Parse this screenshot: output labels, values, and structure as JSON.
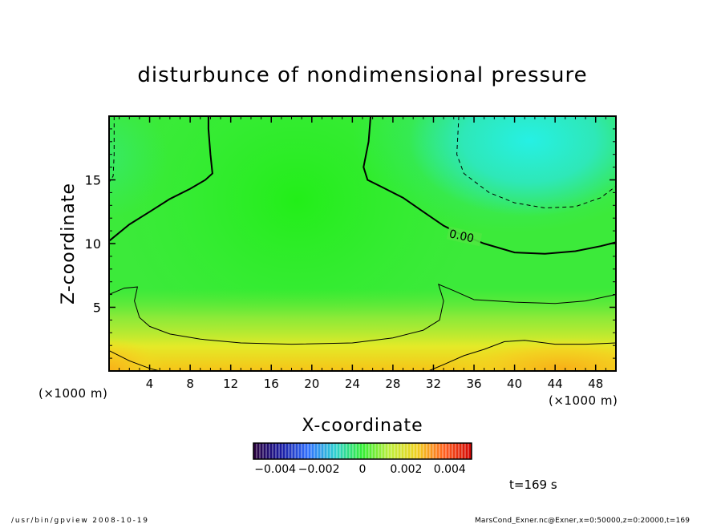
{
  "chart_data": {
    "type": "heatmap",
    "title": "disturbunce of nondimensional pressure",
    "xlabel": "X-coordinate",
    "ylabel": "Z-coordinate",
    "x_unit_left": "(×1000 m)",
    "x_unit_right": "(×1000 m)",
    "xlim": [
      0,
      50
    ],
    "ylim": [
      0,
      20
    ],
    "x_ticks": [
      4,
      8,
      12,
      16,
      20,
      24,
      28,
      32,
      36,
      40,
      44,
      48
    ],
    "y_ticks": [
      5,
      10,
      15
    ],
    "contours": [
      {
        "level": 0.0,
        "label": "0.00",
        "style": "solid-thick",
        "points": [
          [
            0,
            10.2
          ],
          [
            2,
            11.5
          ],
          [
            4,
            12.5
          ],
          [
            6,
            13.5
          ],
          [
            8,
            14.3
          ],
          [
            9.5,
            15
          ],
          [
            10.2,
            15.5
          ],
          [
            10,
            17
          ],
          [
            9.8,
            19
          ],
          [
            9.8,
            20
          ]
        ],
        "points2": [
          [
            25.8,
            20
          ],
          [
            25.6,
            18
          ],
          [
            25.1,
            16
          ],
          [
            25.5,
            15
          ],
          [
            27,
            14.4
          ],
          [
            29,
            13.6
          ],
          [
            31,
            12.5
          ],
          [
            33,
            11.4
          ],
          [
            34.5,
            10.8
          ],
          [
            37,
            10
          ],
          [
            40,
            9.3
          ],
          [
            43,
            9.2
          ],
          [
            46,
            9.4
          ],
          [
            48.5,
            9.8
          ],
          [
            50,
            10.1
          ]
        ]
      },
      {
        "level": -0.0005,
        "style": "dashed",
        "points": [
          [
            0.5,
            20
          ],
          [
            0.5,
            17
          ],
          [
            0.4,
            15.3
          ],
          [
            0,
            14.8
          ]
        ],
        "points2": [
          [
            34.5,
            20
          ],
          [
            34.3,
            17
          ],
          [
            35,
            15.5
          ],
          [
            37.5,
            14
          ],
          [
            40,
            13.2
          ],
          [
            43,
            12.8
          ],
          [
            46,
            12.9
          ],
          [
            48.5,
            13.6
          ],
          [
            50,
            14.5
          ]
        ]
      },
      {
        "level": 0.0005,
        "style": "solid-thin",
        "points": [
          [
            0,
            6
          ],
          [
            1.5,
            6.5
          ],
          [
            2.8,
            6.6
          ],
          [
            2.5,
            5.5
          ],
          [
            3,
            4.2
          ],
          [
            4,
            3.5
          ],
          [
            6,
            2.9
          ],
          [
            9,
            2.5
          ],
          [
            13,
            2.2
          ],
          [
            18,
            2.1
          ],
          [
            24,
            2.2
          ],
          [
            28,
            2.6
          ],
          [
            31,
            3.2
          ],
          [
            32.6,
            4
          ],
          [
            33,
            5.5
          ],
          [
            32.5,
            6.8
          ],
          [
            34,
            6.3
          ],
          [
            36,
            5.6
          ],
          [
            40,
            5.4
          ],
          [
            44,
            5.3
          ],
          [
            47,
            5.5
          ],
          [
            50,
            6
          ]
        ]
      },
      {
        "level": 0.001,
        "style": "solid-thin",
        "points": [
          [
            0,
            1.6
          ],
          [
            2,
            0.8
          ],
          [
            4,
            0.2
          ],
          [
            5,
            0
          ]
        ],
        "points2": [
          [
            31.5,
            0
          ],
          [
            33,
            0.5
          ],
          [
            35,
            1.2
          ],
          [
            37,
            1.7
          ],
          [
            39,
            2.3
          ],
          [
            41,
            2.4
          ],
          [
            44,
            2.1
          ],
          [
            47,
            2.1
          ],
          [
            50,
            2.2
          ]
        ]
      }
    ],
    "field_regions": [
      {
        "name": "negative-upper-right",
        "x": 42,
        "y": 17.5,
        "value": -0.0008
      },
      {
        "name": "center-bulk",
        "x": 18,
        "y": 10,
        "value": 0.0001
      },
      {
        "name": "positive-bottom",
        "x": 44,
        "y": 0.8,
        "value": 0.0013
      },
      {
        "name": "positive-bottom-left",
        "x": 1,
        "y": 0.5,
        "value": 0.0012
      }
    ],
    "colorbar": {
      "min": -0.005,
      "max": 0.005,
      "tick_labels": [
        "−0.004",
        "−0.002",
        "0",
        "0.002",
        "0.004"
      ],
      "tick_values": [
        -0.004,
        -0.002,
        0,
        0.002,
        0.004
      ],
      "stops": [
        "#2a003a",
        "#1a1aa0",
        "#3070ff",
        "#2ed0d0",
        "#33ee33",
        "#bfee3a",
        "#f0d020",
        "#ff6020",
        "#d00000"
      ]
    },
    "time_label": "t=169  s",
    "footer_left": "/usr/bin/gpview  2008-10-19",
    "footer_right": "MarsCond_Exner.nc@Exner,x=0:50000,z=0:20000,t=169"
  }
}
